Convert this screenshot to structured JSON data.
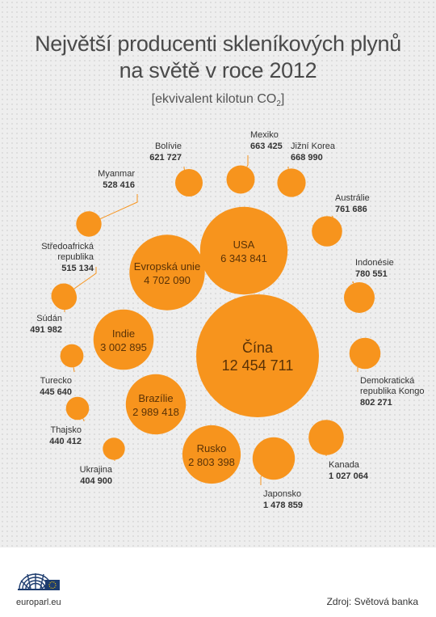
{
  "title_lines": [
    "Největší producenti skleníkových plynů",
    "na světě v roce 2012"
  ],
  "subtitle": {
    "prefix": "[ekvivalent kilotun CO",
    "sub": "2",
    "suffix": "]"
  },
  "colors": {
    "bubble": "#f7941d",
    "inner_text": "#5a3206",
    "leader": "#f7941d",
    "outer_text": "#333333"
  },
  "chart_data": {
    "type": "bubble",
    "title": "Největší producenti skleníkových plynů na světě v roce 2012",
    "unit": "ekvivalent kilotun CO2",
    "series": [
      {
        "name": "Čína",
        "value": 12454711,
        "value_label": "12 454 711"
      },
      {
        "name": "USA",
        "value": 6343841,
        "value_label": "6 343 841"
      },
      {
        "name": "Evropská unie",
        "value": 4702090,
        "value_label": "4 702 090"
      },
      {
        "name": "Indie",
        "value": 3002895,
        "value_label": "3 002 895"
      },
      {
        "name": "Brazílie",
        "value": 2989418,
        "value_label": "2 989 418"
      },
      {
        "name": "Rusko",
        "value": 2803398,
        "value_label": "2 803 398"
      },
      {
        "name": "Japonsko",
        "value": 1478859,
        "value_label": "1 478 859"
      },
      {
        "name": "Kanada",
        "value": 1027064,
        "value_label": "1 027 064"
      },
      {
        "name": "Demokratická republika Kongo",
        "value": 802271,
        "value_label": "802 271"
      },
      {
        "name": "Indonésie",
        "value": 780551,
        "value_label": "780 551"
      },
      {
        "name": "Austrálie",
        "value": 761686,
        "value_label": "761 686"
      },
      {
        "name": "Jižní Korea",
        "value": 668990,
        "value_label": "668 990"
      },
      {
        "name": "Mexiko",
        "value": 663425,
        "value_label": "663 425"
      },
      {
        "name": "Bolívie",
        "value": 621727,
        "value_label": "621 727"
      },
      {
        "name": "Myanmar",
        "value": 528416,
        "value_label": "528 416"
      },
      {
        "name": "Středoafrická republika",
        "value": 515134,
        "value_label": "515 134"
      },
      {
        "name": "Súdán",
        "value": 491982,
        "value_label": "491 982"
      },
      {
        "name": "Turecko",
        "value": 445640,
        "value_label": "445 640"
      },
      {
        "name": "Thajsko",
        "value": 440412,
        "value_label": "440 412"
      },
      {
        "name": "Ukrajina",
        "value": 404900,
        "value_label": "404 900"
      }
    ]
  },
  "footer": {
    "site": "europarl.eu",
    "source": "Zdroj: Světová banka"
  }
}
